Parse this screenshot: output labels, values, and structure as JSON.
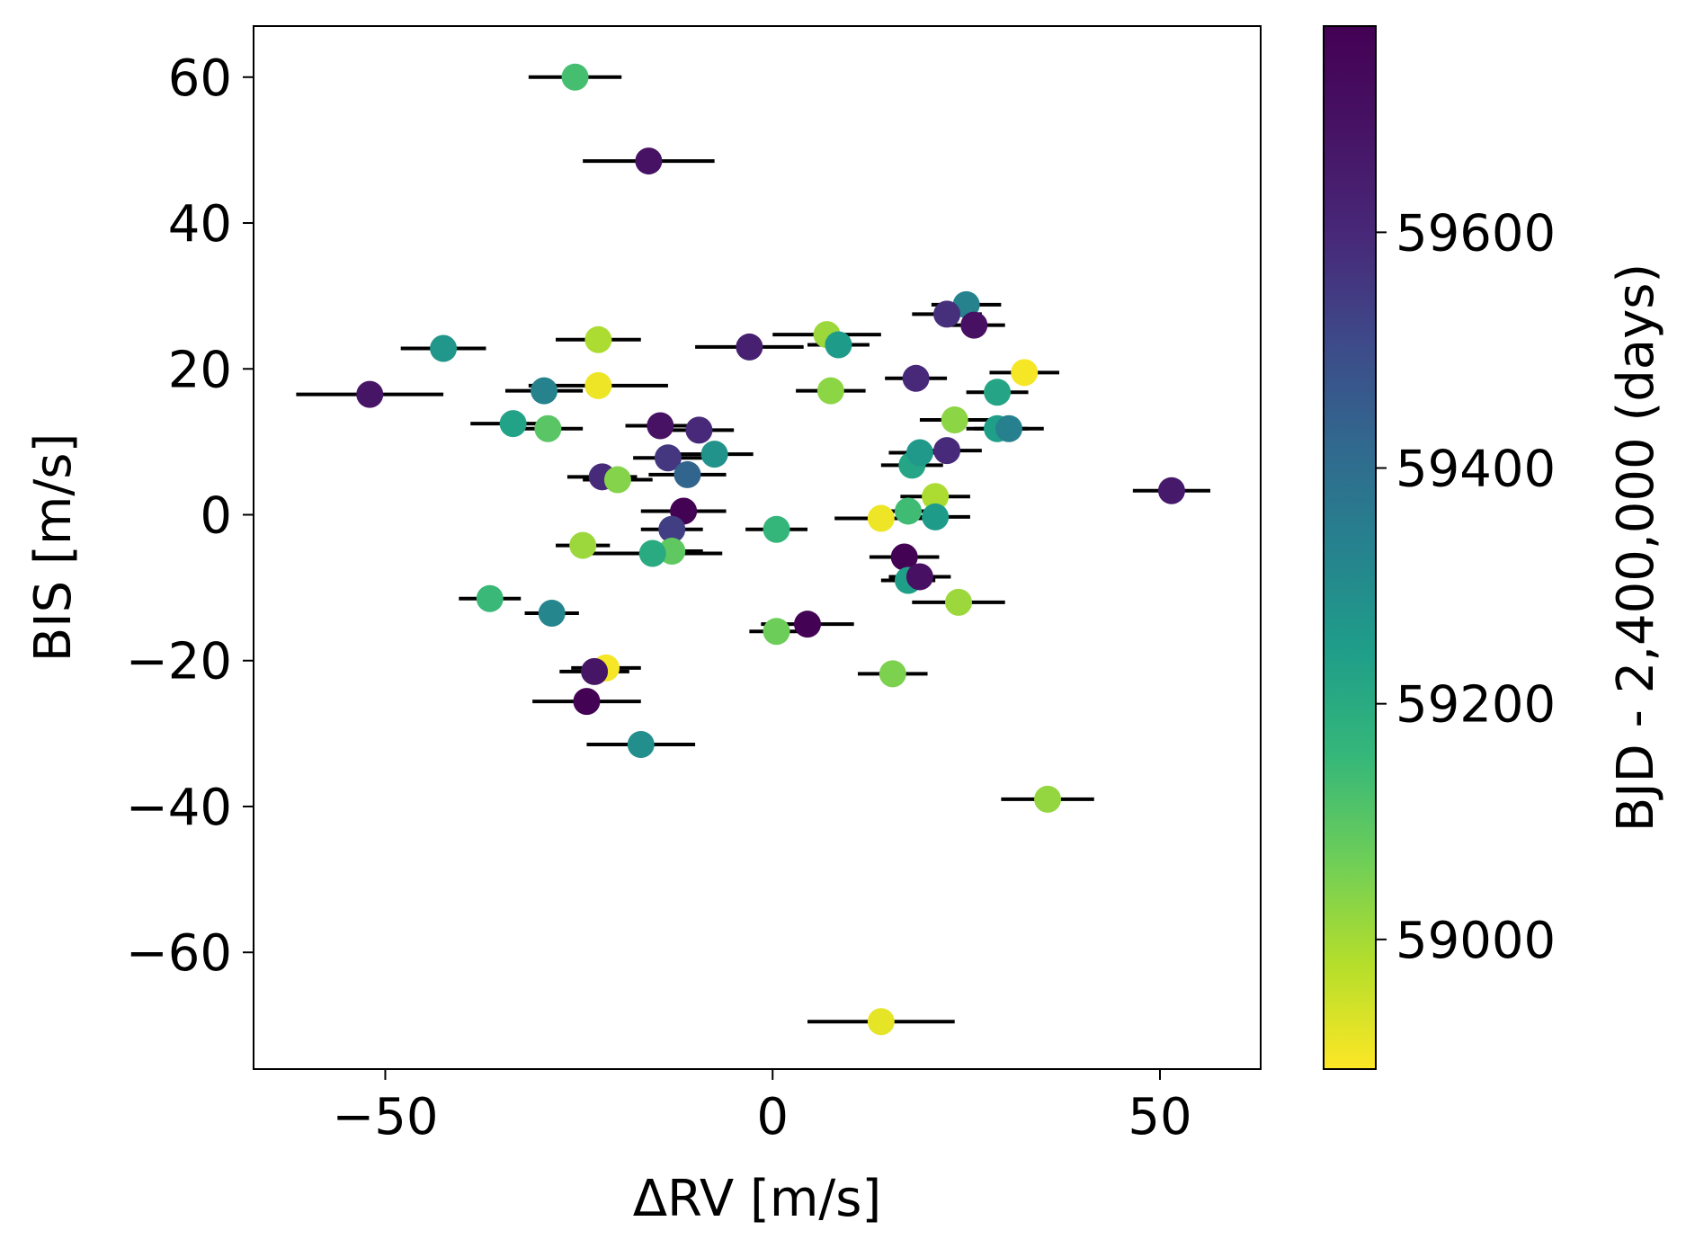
{
  "chart_data": {
    "type": "scatter",
    "xlabel": "ΔRV [m/s]",
    "ylabel": "BIS [m/s]",
    "colorbar_label": "BJD - 2,400,000 (days)",
    "xlim": [
      -67,
      63
    ],
    "ylim": [
      -76,
      67
    ],
    "colorbar_range": [
      58890,
      59775
    ],
    "colormap": "viridis_r",
    "x_ticks": [
      -50,
      0,
      50
    ],
    "x_tick_labels": [
      "−50",
      "0",
      "50"
    ],
    "y_ticks": [
      60,
      40,
      20,
      0,
      -20,
      -40,
      -60
    ],
    "y_tick_labels": [
      "60",
      "40",
      "20",
      "0",
      "−20",
      "−40",
      "−60"
    ],
    "colorbar_ticks": [
      59000,
      59200,
      59400,
      59600
    ],
    "colorbar_tick_labels": [
      "59000",
      "59200",
      "59400",
      "59600"
    ],
    "grid": false,
    "errorbar_color": "#000000",
    "points": [
      {
        "x": -25.5,
        "y": 60.0,
        "xerr": 6.0,
        "t": 59130
      },
      {
        "x": -16.0,
        "y": 48.5,
        "xerr": 8.5,
        "t": 59690
      },
      {
        "x": -52.0,
        "y": 16.5,
        "xerr": 9.5,
        "t": 59680
      },
      {
        "x": -42.5,
        "y": 22.8,
        "xerr": 5.5,
        "t": 59270
      },
      {
        "x": -22.5,
        "y": 24.0,
        "xerr": 5.5,
        "t": 58990
      },
      {
        "x": -22.5,
        "y": 17.7,
        "xerr": 9.0,
        "t": 58910
      },
      {
        "x": -29.5,
        "y": 17.0,
        "xerr": 5.0,
        "t": 59330
      },
      {
        "x": -33.5,
        "y": 12.5,
        "xerr": 5.5,
        "t": 59230
      },
      {
        "x": -29.0,
        "y": 11.8,
        "xerr": 4.5,
        "t": 59100
      },
      {
        "x": -3.0,
        "y": 23.0,
        "xerr": 7.0,
        "t": 59630
      },
      {
        "x": 7.0,
        "y": 24.7,
        "xerr": 7.0,
        "t": 59010
      },
      {
        "x": 8.5,
        "y": 23.3,
        "xerr": 4.0,
        "t": 59250
      },
      {
        "x": 7.5,
        "y": 17.0,
        "xerr": 4.5,
        "t": 59030
      },
      {
        "x": 18.5,
        "y": 18.7,
        "xerr": 4.0,
        "t": 59600
      },
      {
        "x": 25.0,
        "y": 28.8,
        "xerr": 4.5,
        "t": 59330
      },
      {
        "x": 22.5,
        "y": 27.5,
        "xerr": 4.5,
        "t": 59580
      },
      {
        "x": 26.0,
        "y": 26.0,
        "xerr": 4.0,
        "t": 59700
      },
      {
        "x": 32.5,
        "y": 19.5,
        "xerr": 4.5,
        "t": 58900
      },
      {
        "x": 29.0,
        "y": 16.8,
        "xerr": 4.0,
        "t": 59220
      },
      {
        "x": 23.5,
        "y": 13.0,
        "xerr": 4.5,
        "t": 59030
      },
      {
        "x": 29.0,
        "y": 11.8,
        "xerr": 4.0,
        "t": 59240
      },
      {
        "x": 30.5,
        "y": 11.8,
        "xerr": 4.5,
        "t": 59340
      },
      {
        "x": -14.5,
        "y": 12.2,
        "xerr": 4.5,
        "t": 59690
      },
      {
        "x": -9.5,
        "y": 11.6,
        "xerr": 4.5,
        "t": 59600
      },
      {
        "x": -13.5,
        "y": 7.8,
        "xerr": 4.5,
        "t": 59560
      },
      {
        "x": -7.5,
        "y": 8.3,
        "xerr": 5.0,
        "t": 59280
      },
      {
        "x": -11.0,
        "y": 5.5,
        "xerr": 5.0,
        "t": 59430
      },
      {
        "x": -22.0,
        "y": 5.2,
        "xerr": 4.5,
        "t": 59590
      },
      {
        "x": -20.0,
        "y": 4.8,
        "xerr": 4.5,
        "t": 59040
      },
      {
        "x": -11.5,
        "y": 0.5,
        "xerr": 5.5,
        "t": 59770
      },
      {
        "x": -13.0,
        "y": -2.0,
        "xerr": 4.0,
        "t": 59540
      },
      {
        "x": -13.0,
        "y": -5.0,
        "xerr": 4.0,
        "t": 59090
      },
      {
        "x": -15.5,
        "y": -5.3,
        "xerr": 9.0,
        "t": 59200
      },
      {
        "x": -24.5,
        "y": -4.2,
        "xerr": 3.5,
        "t": 59010
      },
      {
        "x": 0.5,
        "y": -2.0,
        "xerr": 4.0,
        "t": 59160
      },
      {
        "x": 14.0,
        "y": -0.5,
        "xerr": 6.0,
        "t": 58910
      },
      {
        "x": 17.5,
        "y": 0.5,
        "xerr": 4.5,
        "t": 59140
      },
      {
        "x": 21.0,
        "y": 2.5,
        "xerr": 4.5,
        "t": 58990
      },
      {
        "x": 21.0,
        "y": -0.3,
        "xerr": 4.5,
        "t": 59250
      },
      {
        "x": 18.0,
        "y": 6.8,
        "xerr": 4.0,
        "t": 59220
      },
      {
        "x": 19.0,
        "y": 8.5,
        "xerr": 4.0,
        "t": 59260
      },
      {
        "x": 22.5,
        "y": 8.8,
        "xerr": 4.5,
        "t": 59590
      },
      {
        "x": 17.0,
        "y": -5.8,
        "xerr": 4.5,
        "t": 59770
      },
      {
        "x": 17.5,
        "y": -9.0,
        "xerr": 3.5,
        "t": 59240
      },
      {
        "x": 19.0,
        "y": -8.5,
        "xerr": 4.0,
        "t": 59700
      },
      {
        "x": 24.0,
        "y": -12.0,
        "xerr": 6.0,
        "t": 59010
      },
      {
        "x": 51.5,
        "y": 3.3,
        "xerr": 5.0,
        "t": 59660
      },
      {
        "x": -36.5,
        "y": -11.5,
        "xerr": 4.0,
        "t": 59150
      },
      {
        "x": -28.5,
        "y": -13.5,
        "xerr": 3.5,
        "t": 59320
      },
      {
        "x": 4.5,
        "y": -15.0,
        "xerr": 6.0,
        "t": 59770
      },
      {
        "x": 0.5,
        "y": -16.0,
        "xerr": 3.5,
        "t": 59070
      },
      {
        "x": 15.5,
        "y": -21.8,
        "xerr": 4.5,
        "t": 59050
      },
      {
        "x": -21.5,
        "y": -21.0,
        "xerr": 4.5,
        "t": 58900
      },
      {
        "x": -23.0,
        "y": -21.5,
        "xerr": 4.5,
        "t": 59680
      },
      {
        "x": -24.0,
        "y": -25.6,
        "xerr": 7.0,
        "t": 59770
      },
      {
        "x": -17.0,
        "y": -31.5,
        "xerr": 7.0,
        "t": 59290
      },
      {
        "x": 35.5,
        "y": -39.0,
        "xerr": 6.0,
        "t": 59020
      },
      {
        "x": 14.0,
        "y": -69.5,
        "xerr": 9.5,
        "t": 58920
      }
    ]
  }
}
